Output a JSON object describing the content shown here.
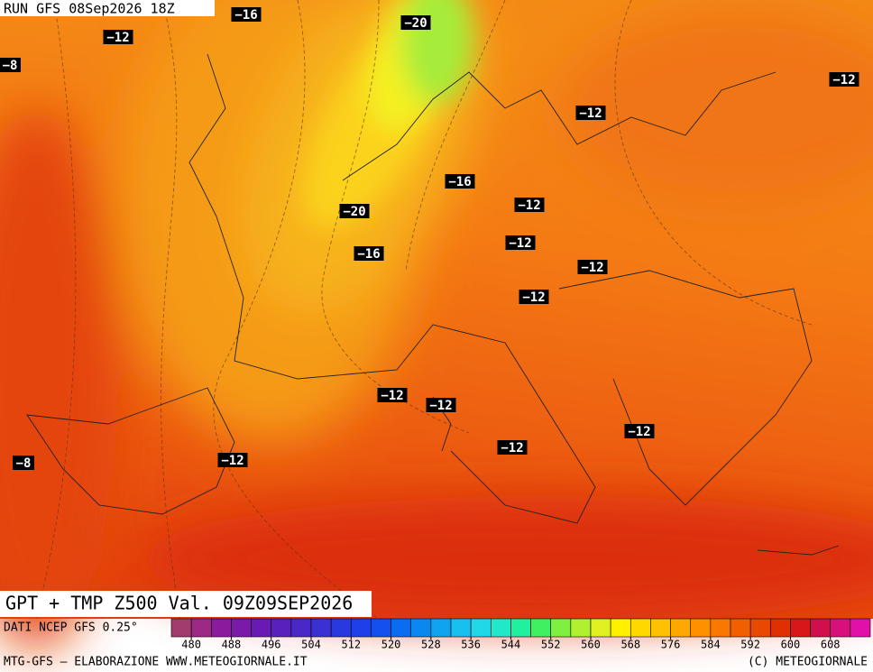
{
  "header": {
    "run": "RUN GFS 08Sep2026 18Z"
  },
  "isotherm_labels": [
    "−16",
    "−12",
    "−8",
    "−20",
    "−12",
    "−12",
    "−16",
    "−12",
    "−20",
    "−12",
    "−16",
    "−12",
    "−12",
    "−12",
    "−12",
    "−12",
    "−12",
    "−8",
    "−12"
  ],
  "footer": {
    "title": "GPT + TMP Z500 Val. 09Z09SEP2026",
    "source": "DATI NCEP GFS 0.25°",
    "credit": "MTG-GFS – ELABORAZIONE WWW.METEOGIORNALE.IT",
    "copyright": "(C) METEOGIORNALE"
  },
  "colorbar": {
    "ticks": [
      480,
      488,
      496,
      504,
      512,
      520,
      528,
      536,
      544,
      552,
      560,
      568,
      576,
      584,
      592,
      600,
      608
    ],
    "colors": [
      "#a33c6e",
      "#9c2a85",
      "#8c1a9c",
      "#7a1aa8",
      "#6a1ab4",
      "#5a20be",
      "#4a28c8",
      "#3a30d4",
      "#2a38e0",
      "#1e40ea",
      "#1450f0",
      "#0a6cf0",
      "#0a88f0",
      "#10a4f0",
      "#18c0f0",
      "#20d8e8",
      "#20e8c8",
      "#20f0a0",
      "#40f060",
      "#80f040",
      "#b0f030",
      "#e0f020",
      "#fff000",
      "#ffd800",
      "#ffc000",
      "#ffa800",
      "#ff9000",
      "#f87800",
      "#f06000",
      "#e84800",
      "#e03000",
      "#d81818",
      "#d0104c",
      "#d8107c",
      "#e010a8"
    ]
  }
}
